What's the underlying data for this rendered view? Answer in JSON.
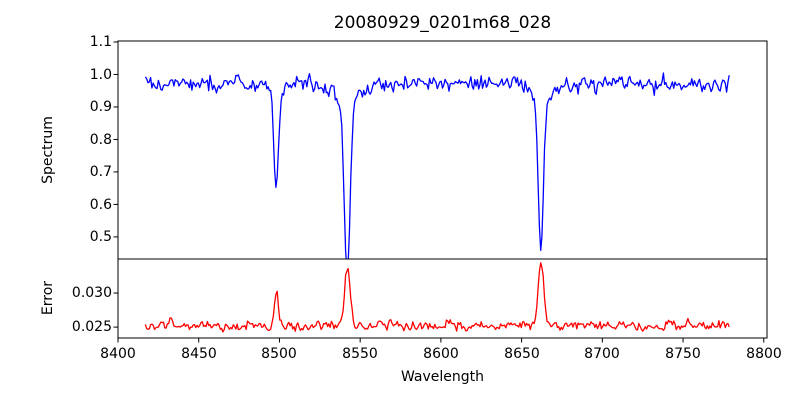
{
  "title": "20080929_0201m68_028",
  "chart_data": {
    "type": "line",
    "title": "20080929_0201m68_028",
    "xlabel": "Wavelength",
    "xlim": [
      8400,
      8802
    ],
    "x_ticks": [
      8400,
      8450,
      8500,
      8550,
      8600,
      8650,
      8700,
      8750,
      8800
    ],
    "x_tick_labels": [
      "8400",
      "8450",
      "8500",
      "8550",
      "8600",
      "8650",
      "8700",
      "8750",
      "8800"
    ],
    "x_start": 8417,
    "x_end": 8779,
    "step": 0.8,
    "grid": false,
    "legend": "none",
    "panels": [
      {
        "ylabel": "Spectrum",
        "ylim": [
          0.432,
          1.103
        ],
        "y_ticks": [
          1.1,
          1.0,
          0.9,
          0.8,
          0.7,
          0.6,
          0.5
        ],
        "y_tick_labels": [
          "1.1",
          "1.0",
          "0.9",
          "0.8",
          "0.7",
          "0.6",
          "0.5"
        ],
        "series": {
          "name": "spectrum",
          "color": "#0000ff",
          "continuum": 0.97,
          "noise_sigma": 0.015,
          "absorption_lines": [
            {
              "center": 8498,
              "depth": 0.29,
              "sigma": 1.3,
              "wing_depth": 0.04,
              "wing_sigma": 4
            },
            {
              "center": 8542,
              "depth": 0.5,
              "sigma": 1.8,
              "wing_depth": 0.07,
              "wing_sigma": 6
            },
            {
              "center": 8662,
              "depth": 0.44,
              "sigma": 1.6,
              "wing_depth": 0.06,
              "wing_sigma": 5
            }
          ]
        }
      },
      {
        "ylabel": "Error",
        "ylim": [
          0.0234,
          0.035
        ],
        "y_ticks": [
          0.03,
          0.025
        ],
        "y_tick_labels": [
          "0.030",
          "0.025"
        ],
        "series": {
          "name": "error",
          "color": "#ff0000",
          "baseline": 0.0252,
          "noise_sigma": 0.00045,
          "peaks": [
            {
              "center": 8498,
              "height": 0.0049,
              "sigma": 1.3
            },
            {
              "center": 8542,
              "height": 0.0086,
              "sigma": 1.7
            },
            {
              "center": 8662,
              "height": 0.0094,
              "sigma": 1.6
            }
          ]
        }
      }
    ]
  }
}
